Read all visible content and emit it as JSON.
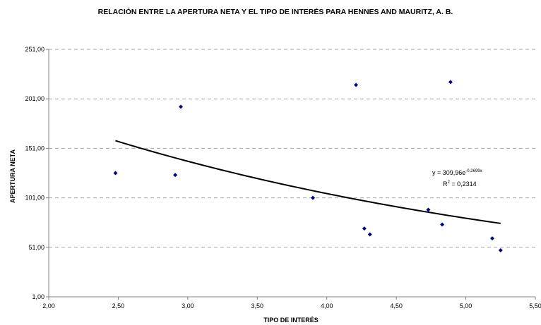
{
  "chart_data": {
    "type": "scatter",
    "title": "RELACIÓN ENTRE LA APERTURA NETA Y EL TIPO DE INTERÉS PARA HENNES AND MAURITZ, A. B.",
    "xlabel": "TIPO DE INTERÉS",
    "ylabel": "APERTURA NETA",
    "xlim": [
      2.0,
      5.5
    ],
    "ylim": [
      1.0,
      251.0
    ],
    "x_ticks": [
      "2,00",
      "2,50",
      "3,00",
      "3,50",
      "4,00",
      "4,50",
      "5,00",
      "5,50"
    ],
    "y_ticks": [
      "1,00",
      "51,00",
      "101,00",
      "151,00",
      "201,00",
      "251,00"
    ],
    "x_tick_values": [
      2.0,
      2.5,
      3.0,
      3.5,
      4.0,
      4.5,
      5.0,
      5.5
    ],
    "y_tick_values": [
      1,
      51,
      101,
      151,
      201,
      251
    ],
    "grid": "horizontal-dashed",
    "marker_color": "#000080",
    "points": [
      {
        "x": 2.48,
        "y": 126
      },
      {
        "x": 2.91,
        "y": 124
      },
      {
        "x": 2.95,
        "y": 193
      },
      {
        "x": 3.9,
        "y": 101
      },
      {
        "x": 4.21,
        "y": 215
      },
      {
        "x": 4.27,
        "y": 70
      },
      {
        "x": 4.31,
        "y": 64
      },
      {
        "x": 4.73,
        "y": 89
      },
      {
        "x": 4.83,
        "y": 74
      },
      {
        "x": 4.89,
        "y": 218
      },
      {
        "x": 5.19,
        "y": 60
      },
      {
        "x": 5.25,
        "y": 48
      }
    ],
    "trendline": {
      "type": "exponential",
      "a": 309.96,
      "b": -0.2699,
      "x_range": [
        2.48,
        5.25
      ],
      "color": "#000000"
    },
    "annotation": {
      "equation_base": "y = 309,96e",
      "equation_exp": "-0,2699x",
      "r2_base": "R",
      "r2_exp": "2",
      "r2_value": " = 0,2314"
    }
  }
}
